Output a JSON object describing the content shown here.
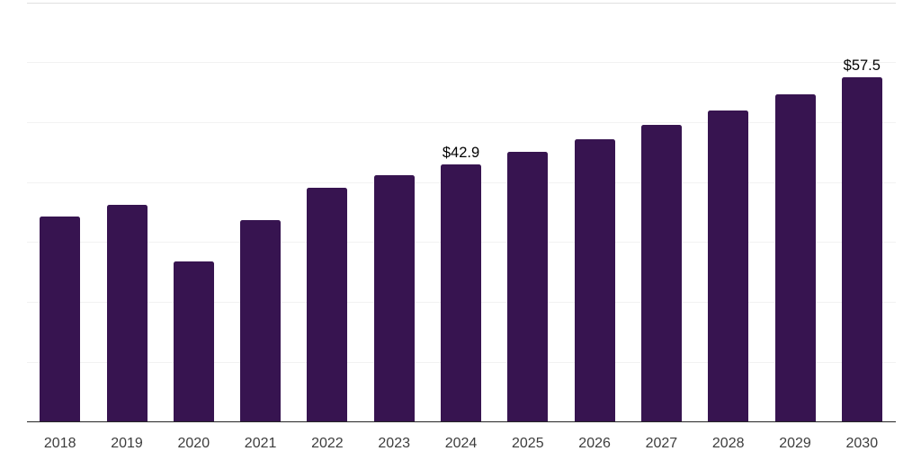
{
  "chart_data": {
    "type": "bar",
    "x": [
      "2018",
      "2019",
      "2020",
      "2021",
      "2022",
      "2023",
      "2024",
      "2025",
      "2026",
      "2027",
      "2028",
      "2029",
      "2030"
    ],
    "values": [
      34.2,
      36.2,
      26.7,
      33.6,
      39.0,
      41.1,
      42.9,
      45.1,
      47.2,
      49.6,
      52.0,
      54.7,
      57.5
    ],
    "annotations": [
      {
        "x": "2024",
        "label": "$42.9"
      },
      {
        "x": "2030",
        "label": "$57.5"
      }
    ],
    "title": "",
    "xlabel": "",
    "ylabel": "",
    "ylim": [
      0,
      70
    ],
    "grid_step": 10,
    "grid": true,
    "legend": "none",
    "y_axis_labels_visible": false,
    "colors": {
      "bar": "#371450",
      "grid": "#f2f2f2",
      "grid_top": "#e0e0e0",
      "axis": "#262626",
      "tick_label": "#3d3d3d",
      "annotation": "#000000",
      "background": "#ffffff"
    }
  }
}
